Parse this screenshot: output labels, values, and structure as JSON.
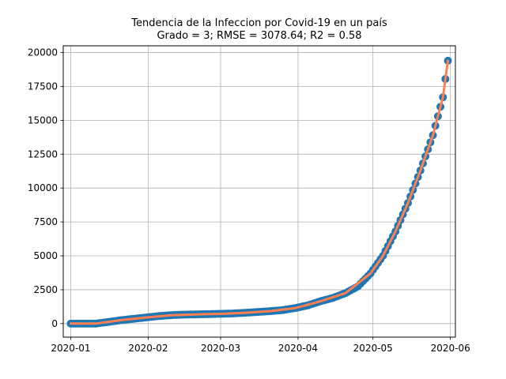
{
  "chart_data": {
    "type": "scatter",
    "title": "Tendencia de la Infeccion por Covid-19 en un país",
    "subtitle": "Grado = 3; RMSE = 3078.64; R2 = 0.58",
    "xlabel": "",
    "ylabel": "",
    "xlim": [
      "2019-12-29",
      "2020-06-03"
    ],
    "ylim": [
      -1000,
      20500
    ],
    "x_ticks": [
      "2020-01-01",
      "2020-02-01",
      "2020-03-01",
      "2020-04-01",
      "2020-05-01",
      "2020-06-01"
    ],
    "x_tick_labels": [
      "2020-01",
      "2020-02",
      "2020-03",
      "2020-04",
      "2020-05",
      "2020-06"
    ],
    "y_ticks": [
      0,
      2500,
      5000,
      7500,
      10000,
      12500,
      15000,
      17500,
      20000
    ],
    "y_tick_labels": [
      "0",
      "2500",
      "5000",
      "7500",
      "10000",
      "12500",
      "15000",
      "17500",
      "20000"
    ],
    "grid": true,
    "series": [
      {
        "kind": "scatter",
        "color": "#1f77b4",
        "points": [
          [
            "2020-01-01",
            0
          ],
          [
            "2020-01-06",
            0
          ],
          [
            "2020-01-11",
            0
          ],
          [
            "2020-01-16",
            120
          ],
          [
            "2020-01-21",
            250
          ],
          [
            "2020-01-26",
            350
          ],
          [
            "2020-01-31",
            450
          ],
          [
            "2020-02-05",
            550
          ],
          [
            "2020-02-10",
            620
          ],
          [
            "2020-02-15",
            660
          ],
          [
            "2020-02-20",
            680
          ],
          [
            "2020-02-25",
            700
          ],
          [
            "2020-03-01",
            720
          ],
          [
            "2020-03-06",
            750
          ],
          [
            "2020-03-11",
            800
          ],
          [
            "2020-03-16",
            860
          ],
          [
            "2020-03-21",
            920
          ],
          [
            "2020-03-26",
            1000
          ],
          [
            "2020-03-31",
            1150
          ],
          [
            "2020-04-05",
            1350
          ],
          [
            "2020-04-10",
            1650
          ],
          [
            "2020-04-15",
            1900
          ],
          [
            "2020-04-20",
            2250
          ],
          [
            "2020-04-25",
            2750
          ],
          [
            "2020-04-30",
            3700
          ],
          [
            "2020-05-05",
            5000
          ],
          [
            "2020-05-10",
            6800
          ],
          [
            "2020-05-15",
            8900
          ],
          [
            "2020-05-20",
            11300
          ],
          [
            "2020-05-25",
            13900
          ],
          [
            "2020-05-29",
            16700
          ],
          [
            "2020-05-31",
            19400
          ]
        ]
      },
      {
        "kind": "line",
        "color": "#ff7f50",
        "points": [
          [
            "2020-01-01",
            0
          ],
          [
            "2020-01-11",
            0
          ],
          [
            "2020-01-21",
            250
          ],
          [
            "2020-01-31",
            450
          ],
          [
            "2020-02-10",
            620
          ],
          [
            "2020-02-20",
            680
          ],
          [
            "2020-03-01",
            720
          ],
          [
            "2020-03-11",
            800
          ],
          [
            "2020-03-21",
            920
          ],
          [
            "2020-03-31",
            1150
          ],
          [
            "2020-04-10",
            1650
          ],
          [
            "2020-04-20",
            2250
          ],
          [
            "2020-04-30",
            3700
          ],
          [
            "2020-05-05",
            5000
          ],
          [
            "2020-05-10",
            6800
          ],
          [
            "2020-05-15",
            8900
          ],
          [
            "2020-05-20",
            11300
          ],
          [
            "2020-05-25",
            13900
          ],
          [
            "2020-05-29",
            16700
          ],
          [
            "2020-05-31",
            19400
          ]
        ]
      }
    ]
  }
}
